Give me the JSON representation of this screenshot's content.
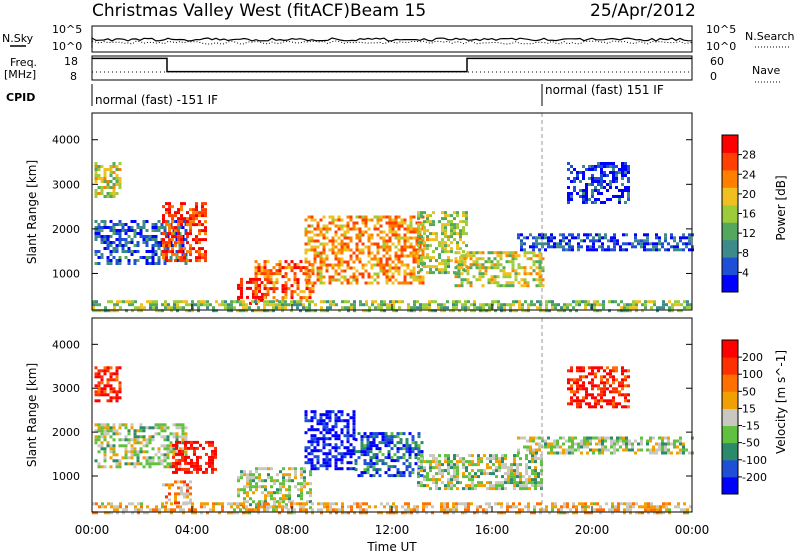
{
  "header": {
    "station": "Christmas Valley West (fitACF)",
    "beam": "Beam 15",
    "date": "25/Apr/2012"
  },
  "strip": {
    "nsky_label": "N.Sky",
    "nsearch_label": "N.Search",
    "freq_label_1": "Freq.",
    "freq_label_2": "[MHz]",
    "nave_label": "Nave",
    "cpid_label": "CPID",
    "nsky_ticks": [
      "10^5",
      "10^0"
    ],
    "nsearch_ticks": [
      "10^5",
      "10^0"
    ],
    "freq_ticks": [
      "18",
      "8"
    ],
    "nave_ticks": [
      "60",
      "0"
    ],
    "cpid_segments": [
      {
        "label": "normal (fast) -151 IF",
        "start_hour": 0,
        "end_hour": 18
      },
      {
        "label": "normal (fast) 151 IF",
        "start_hour": 18,
        "end_hour": 24
      }
    ],
    "freq_steps": [
      {
        "start_hour": 0,
        "end_hour": 3,
        "level": 0.9
      },
      {
        "start_hour": 3,
        "end_hour": 15,
        "level": 0.35
      },
      {
        "start_hour": 15,
        "end_hour": 24,
        "level": 0.9
      }
    ]
  },
  "chart_data": [
    {
      "type": "heatmap",
      "name": "Power",
      "ylabel": "Slant Range [km]",
      "ylim": [
        180,
        4600
      ],
      "xlim": [
        0,
        24
      ],
      "yticks": [
        "1000",
        "2000",
        "3000",
        "4000"
      ],
      "colorbar_label": "Power [dB]",
      "colorbar_ticks": [
        "4",
        "8",
        "12",
        "16",
        "20",
        "24",
        "28"
      ],
      "colorbar_colors": [
        "#0000ff",
        "#1f4fd6",
        "#3d8a8a",
        "#53a85e",
        "#9ccc3a",
        "#f0c020",
        "#ff8000",
        "#ff4000",
        "#ff0000"
      ],
      "patches": [
        {
          "t0": 0.1,
          "t1": 1.1,
          "r0": 2700,
          "r1": 3500,
          "v": 0.55
        },
        {
          "t0": 0.1,
          "t1": 3.8,
          "r0": 1200,
          "r1": 2200,
          "v": 0.2
        },
        {
          "t0": 2.8,
          "t1": 4.5,
          "r0": 1300,
          "r1": 2600,
          "v": 0.85
        },
        {
          "t0": 5.8,
          "t1": 7.0,
          "r0": 300,
          "r1": 900,
          "v": 0.95
        },
        {
          "t0": 6.5,
          "t1": 8.8,
          "r0": 400,
          "r1": 1300,
          "v": 0.8
        },
        {
          "t0": 8.5,
          "t1": 13.2,
          "r0": 800,
          "r1": 2300,
          "v": 0.7
        },
        {
          "t0": 13.0,
          "t1": 15.0,
          "r0": 1000,
          "r1": 2400,
          "v": 0.5
        },
        {
          "t0": 14.5,
          "t1": 18.0,
          "r0": 700,
          "r1": 1500,
          "v": 0.55
        },
        {
          "t0": 17.0,
          "t1": 24.0,
          "r0": 1500,
          "r1": 1900,
          "v": 0.15
        },
        {
          "t0": 19.0,
          "t1": 21.5,
          "r0": 2600,
          "r1": 3500,
          "v": 0.1
        },
        {
          "t0": 0.0,
          "t1": 24.0,
          "r0": 180,
          "r1": 400,
          "v": 0.45
        }
      ]
    },
    {
      "type": "heatmap",
      "name": "Velocity",
      "ylabel": "Slant Range [km]",
      "xlabel": "Time UT",
      "ylim": [
        180,
        4600
      ],
      "xlim": [
        0,
        24
      ],
      "yticks": [
        "1000",
        "2000",
        "3000",
        "4000"
      ],
      "xticks": [
        "00:00",
        "04:00",
        "08:00",
        "12:00",
        "16:00",
        "20:00",
        "00:00"
      ],
      "colorbar_label": "Velocity [m s^-1]",
      "colorbar_ticks": [
        "200",
        "100",
        "50",
        "15",
        "-15",
        "-50",
        "-100",
        "-200"
      ],
      "colorbar_colors": [
        "#0000ff",
        "#1f4fd6",
        "#2a8a6a",
        "#60c040",
        "#c8c8c0",
        "#f0a000",
        "#ff7000",
        "#ff3000",
        "#ff0000"
      ],
      "patches": [
        {
          "t0": 0.1,
          "t1": 1.1,
          "r0": 2700,
          "r1": 3500,
          "v": 0.9
        },
        {
          "t0": 0.1,
          "t1": 3.8,
          "r0": 1200,
          "r1": 2200,
          "v": 0.45
        },
        {
          "t0": 3.2,
          "t1": 5.0,
          "r0": 1100,
          "r1": 1800,
          "v": 0.95
        },
        {
          "t0": 2.8,
          "t1": 4.0,
          "r0": 400,
          "r1": 900,
          "v": 0.65
        },
        {
          "t0": 5.8,
          "t1": 8.8,
          "r0": 300,
          "r1": 1200,
          "v": 0.45
        },
        {
          "t0": 8.5,
          "t1": 10.5,
          "r0": 1200,
          "r1": 2500,
          "v": 0.05
        },
        {
          "t0": 10.5,
          "t1": 13.2,
          "r0": 1000,
          "r1": 2000,
          "v": 0.2
        },
        {
          "t0": 13.0,
          "t1": 18.0,
          "r0": 700,
          "r1": 1500,
          "v": 0.45
        },
        {
          "t0": 17.0,
          "t1": 24.0,
          "r0": 1500,
          "r1": 1900,
          "v": 0.45
        },
        {
          "t0": 19.0,
          "t1": 21.5,
          "r0": 2600,
          "r1": 3500,
          "v": 0.9
        },
        {
          "t0": 0.0,
          "t1": 24.0,
          "r0": 180,
          "r1": 400,
          "v": 0.6
        }
      ]
    }
  ]
}
